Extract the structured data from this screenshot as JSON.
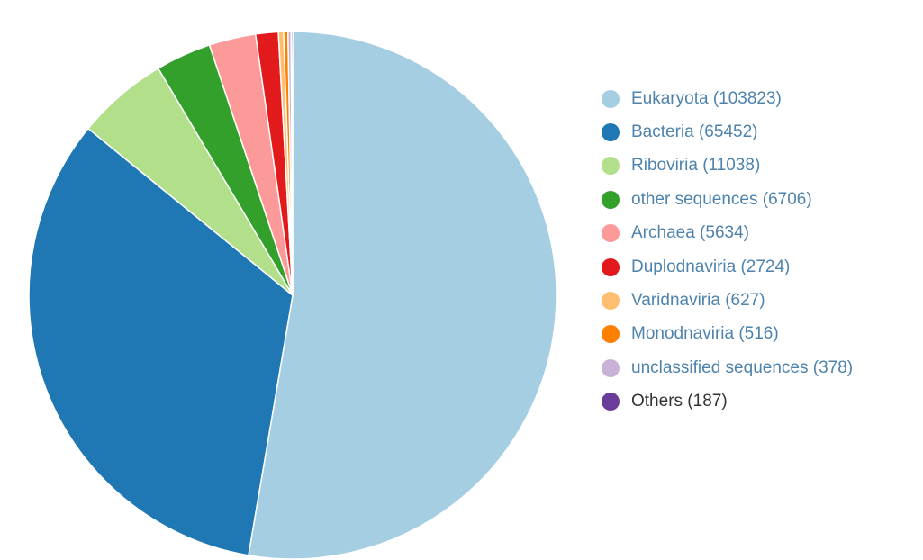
{
  "chart_data": {
    "type": "pie",
    "start_angle": "12 o'clock",
    "direction": "clockwise",
    "legend_placement": "right",
    "slice_border": "#ffffff",
    "slices": [
      {
        "label": "Eukaryota (103823)",
        "value": 103823,
        "color": "#a6cee3"
      },
      {
        "label": "Bacteria (65452)",
        "value": 65452,
        "color": "#1f78b4"
      },
      {
        "label": "Riboviria (11038)",
        "value": 11038,
        "color": "#b2df8a"
      },
      {
        "label": "other sequences (6706)",
        "value": 6706,
        "color": "#33a02c"
      },
      {
        "label": "Archaea (5634)",
        "value": 5634,
        "color": "#fb9a99"
      },
      {
        "label": "Duplodnaviria (2724)",
        "value": 2724,
        "color": "#e31a1c"
      },
      {
        "label": "Varidnaviria (627)",
        "value": 627,
        "color": "#fdbf6f"
      },
      {
        "label": "Monodnaviria (516)",
        "value": 516,
        "color": "#ff7f00"
      },
      {
        "label": "unclassified sequences (378)",
        "value": 378,
        "color": "#cab2d6"
      },
      {
        "label": "Others (187)",
        "value": 187,
        "color": "#6a3d9a"
      }
    ]
  }
}
